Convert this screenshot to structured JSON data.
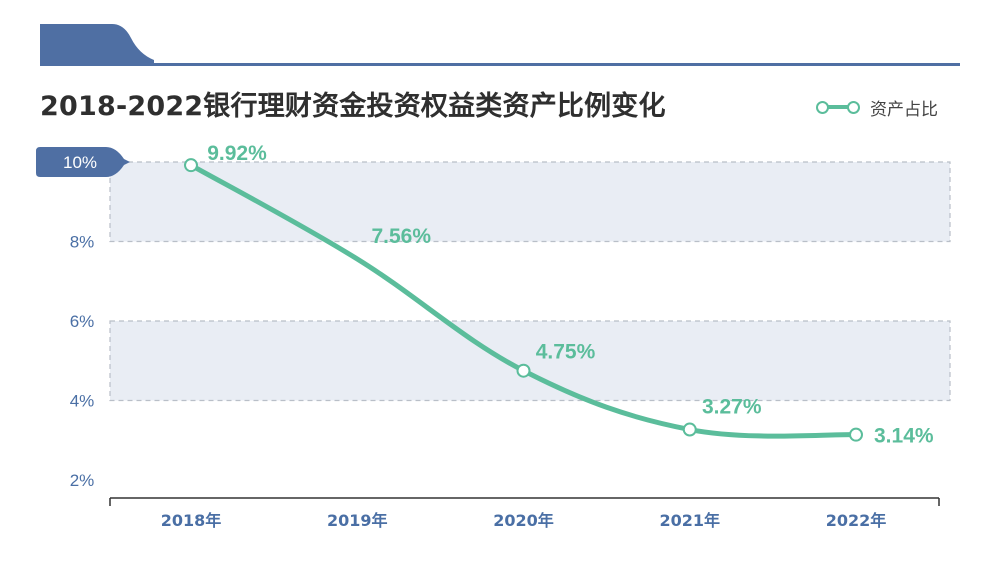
{
  "colors": {
    "accent_blue": "#4a6fa5",
    "line_green": "#5bbd9b",
    "band_fill": "#e9edf4",
    "header_bar": "#4f6fa3"
  },
  "legend": {
    "label": "资产占比"
  },
  "chart_data": {
    "type": "line",
    "title": "2018-2022银行理财资金投资权益类资产比例变化",
    "xlabel": "",
    "ylabel": "",
    "categories": [
      "2018年",
      "2019年",
      "2020年",
      "2021年",
      "2022年"
    ],
    "series": [
      {
        "name": "资产占比",
        "values": [
          9.92,
          7.56,
          4.75,
          3.27,
          3.14
        ],
        "labels": [
          "9.92%",
          "7.56%",
          "4.75%",
          "3.27%",
          "3.14%"
        ]
      }
    ],
    "ylim": [
      2,
      10
    ],
    "yticks": [
      2,
      4,
      6,
      8,
      10
    ],
    "ytick_labels": [
      "2%",
      "4%",
      "6%",
      "8%",
      "10%"
    ],
    "highlighted_ytick": "10%",
    "shaded_bands": [
      [
        8,
        10
      ],
      [
        4,
        6
      ]
    ],
    "grid": false,
    "legend_position": "top-right"
  }
}
